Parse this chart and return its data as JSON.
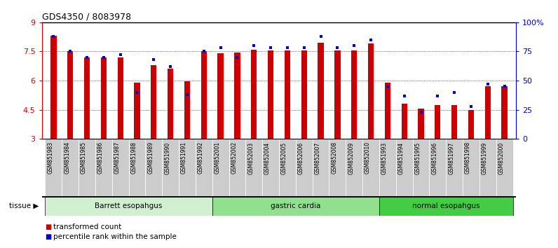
{
  "title": "GDS4350 / 8083978",
  "samples": [
    "GSM851983",
    "GSM851984",
    "GSM851985",
    "GSM851986",
    "GSM851987",
    "GSM851988",
    "GSM851989",
    "GSM851990",
    "GSM851991",
    "GSM851992",
    "GSM852001",
    "GSM852002",
    "GSM852003",
    "GSM852004",
    "GSM852005",
    "GSM852006",
    "GSM852007",
    "GSM852008",
    "GSM852009",
    "GSM852010",
    "GSM851993",
    "GSM851994",
    "GSM851995",
    "GSM851996",
    "GSM851997",
    "GSM851998",
    "GSM851999",
    "GSM852000"
  ],
  "red_values": [
    8.3,
    7.5,
    7.2,
    7.2,
    7.2,
    5.9,
    6.8,
    6.6,
    5.95,
    7.5,
    7.4,
    7.45,
    7.6,
    7.55,
    7.55,
    7.55,
    7.95,
    7.55,
    7.55,
    7.9,
    5.9,
    4.8,
    4.55,
    4.75,
    4.75,
    4.5,
    5.7,
    5.7
  ],
  "blue_values": [
    88,
    75,
    70,
    70,
    72,
    40,
    68,
    62,
    38,
    75,
    78,
    70,
    80,
    78,
    78,
    78,
    88,
    78,
    80,
    85,
    45,
    37,
    23,
    37,
    40,
    28,
    47,
    45
  ],
  "groups": [
    {
      "label": "Barrett esopahgus",
      "start": 0,
      "end": 9,
      "color": "#d0f0d0"
    },
    {
      "label": "gastric cardia",
      "start": 10,
      "end": 19,
      "color": "#90e090"
    },
    {
      "label": "normal esopahgus",
      "start": 20,
      "end": 27,
      "color": "#44cc44"
    }
  ],
  "ylim_left": [
    3,
    9
  ],
  "ylim_right": [
    0,
    100
  ],
  "yticks_left": [
    3,
    4.5,
    6,
    7.5,
    9
  ],
  "yticks_right": [
    0,
    25,
    50,
    75,
    100
  ],
  "bar_color": "#cc0000",
  "dot_color": "#0000cc",
  "background_color": "#ffffff",
  "tick_bg_color": "#cccccc",
  "bar_width": 0.35
}
